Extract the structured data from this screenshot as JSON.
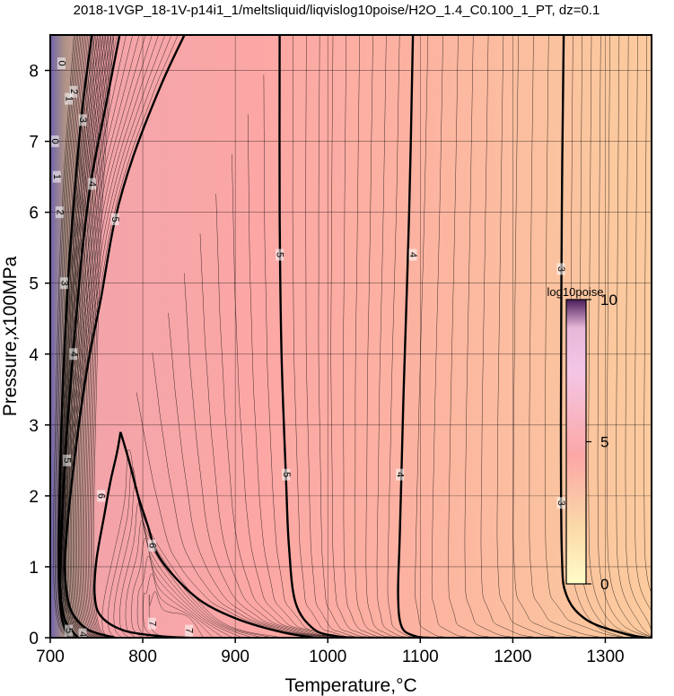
{
  "chart_data": {
    "type": "contour",
    "title": "2018-1VGP_18-1V-p14i1_1/meltsliquid/liqvislog10poise/H2O_1.4_C0.100_1_PT, dz=0.1",
    "xlabel": "Temperature,°C",
    "ylabel": "Pressure,x100MPa",
    "xlim": [
      700,
      1350
    ],
    "ylim": [
      0,
      8.5
    ],
    "xticks": [
      700,
      800,
      900,
      1000,
      1100,
      1200,
      1300
    ],
    "yticks": [
      0,
      1,
      2,
      3,
      4,
      5,
      6,
      7,
      8
    ],
    "grid": true,
    "colorbar": {
      "label": "log10poise",
      "range": [
        0,
        10
      ],
      "ticks": [
        0,
        5,
        10
      ]
    },
    "contour_interval": 0.1,
    "major_contours": [
      {
        "level": 3,
        "label": "3",
        "points": [
          [
            1255,
            8.5
          ],
          [
            1253,
            6
          ],
          [
            1252,
            3
          ],
          [
            1253,
            1.2
          ],
          [
            1258,
            0.6
          ],
          [
            1280,
            0.25
          ],
          [
            1320,
            0.06
          ],
          [
            1345,
            0
          ]
        ]
      },
      {
        "level": 4,
        "label": "4",
        "points": [
          [
            1092,
            8.5
          ],
          [
            1088,
            6
          ],
          [
            1082,
            3.5
          ],
          [
            1078,
            1.5
          ],
          [
            1076,
            0.6
          ],
          [
            1080,
            0.15
          ],
          [
            1095,
            0.02
          ],
          [
            1110,
            0
          ]
        ]
      },
      {
        "level": 5,
        "label": "5",
        "points": [
          [
            948,
            8.5
          ],
          [
            948,
            6
          ],
          [
            950,
            4
          ],
          [
            955,
            2.2
          ],
          [
            958,
            1.3
          ],
          [
            965,
            0.5
          ],
          [
            985,
            0.12
          ],
          [
            1010,
            0.02
          ],
          [
            1030,
            0
          ]
        ]
      },
      {
        "level": 6,
        "label": "6",
        "points": [
          [
            776,
            2.9
          ],
          [
            785,
            2.5
          ],
          [
            795,
            2.0
          ],
          [
            805,
            1.6
          ],
          [
            815,
            1.2
          ],
          [
            835,
            0.85
          ],
          [
            865,
            0.5
          ],
          [
            905,
            0.25
          ],
          [
            950,
            0.08
          ],
          [
            985,
            0
          ]
        ]
      },
      {
        "level": 6,
        "label": "6",
        "points": [
          [
            776,
            2.9
          ],
          [
            772,
            2.6
          ],
          [
            765,
            2.2
          ],
          [
            758,
            1.7
          ],
          [
            750,
            1.1
          ],
          [
            748,
            0.6
          ],
          [
            755,
            0.3
          ],
          [
            780,
            0.1
          ],
          [
            820,
            0.02
          ],
          [
            850,
            0
          ]
        ]
      },
      {
        "level": 5,
        "label": "5",
        "points": [
          [
            845,
            8.5
          ],
          [
            820,
            7.8
          ],
          [
            790,
            6.8
          ],
          [
            770,
            5.9
          ],
          [
            755,
            4.8
          ],
          [
            740,
            3.8
          ],
          [
            727,
            2.6
          ],
          [
            718,
            1.5
          ],
          [
            716,
            0.9
          ],
          [
            722,
            0.4
          ],
          [
            740,
            0.12
          ],
          [
            770,
            0
          ]
        ]
      },
      {
        "level": 4,
        "label": "4",
        "points": [
          [
            775,
            8.5
          ],
          [
            760,
            7.5
          ],
          [
            745,
            6.5
          ],
          [
            735,
            5.5
          ],
          [
            728,
            4.5
          ],
          [
            722,
            3.6
          ],
          [
            716,
            2.5
          ],
          [
            712,
            1.4
          ],
          [
            711,
            0.7
          ],
          [
            716,
            0.25
          ],
          [
            730,
            0
          ]
        ]
      },
      {
        "level": 3,
        "label": "3",
        "points": [
          [
            745,
            8.5
          ],
          [
            735,
            7.5
          ],
          [
            727,
            6.4
          ],
          [
            720,
            5.2
          ],
          [
            715,
            4.0
          ],
          [
            712,
            3.0
          ],
          [
            710,
            2.0
          ],
          [
            709,
            1.0
          ],
          [
            712,
            0.3
          ],
          [
            720,
            0
          ]
        ]
      }
    ],
    "labels": [
      {
        "text": "3",
        "T": 1252,
        "P": 5.2
      },
      {
        "text": "3",
        "T": 1252,
        "P": 1.9
      },
      {
        "text": "4",
        "T": 1092,
        "P": 5.4
      },
      {
        "text": "4",
        "T": 1078,
        "P": 2.3
      },
      {
        "text": "5",
        "T": 948,
        "P": 5.4
      },
      {
        "text": "5",
        "T": 955,
        "P": 2.3
      },
      {
        "text": "5",
        "T": 770,
        "P": 5.9
      },
      {
        "text": "6",
        "T": 810,
        "P": 1.3
      },
      {
        "text": "6",
        "T": 755,
        "P": 2.0
      },
      {
        "text": "4",
        "T": 725,
        "P": 4.0
      },
      {
        "text": "5",
        "T": 718,
        "P": 2.5
      },
      {
        "text": "3",
        "T": 715,
        "P": 5.0
      },
      {
        "text": "4",
        "T": 745,
        "P": 6.4
      },
      {
        "text": "3",
        "T": 735,
        "P": 7.3
      },
      {
        "text": "2",
        "T": 725,
        "P": 7.7
      },
      {
        "text": "1",
        "T": 720,
        "P": 7.6
      },
      {
        "text": "0",
        "T": 712,
        "P": 8.1
      },
      {
        "text": "0",
        "T": 705,
        "P": 7.0
      },
      {
        "text": "1",
        "T": 707,
        "P": 6.5
      },
      {
        "text": "2",
        "T": 710,
        "P": 6.0
      },
      {
        "text": "7",
        "T": 850,
        "P": 0.1
      },
      {
        "text": "7",
        "T": 810,
        "P": 0.2
      },
      {
        "text": "5",
        "T": 720,
        "P": 0.1
      },
      {
        "text": "4",
        "T": 735,
        "P": 0.05
      }
    ]
  }
}
